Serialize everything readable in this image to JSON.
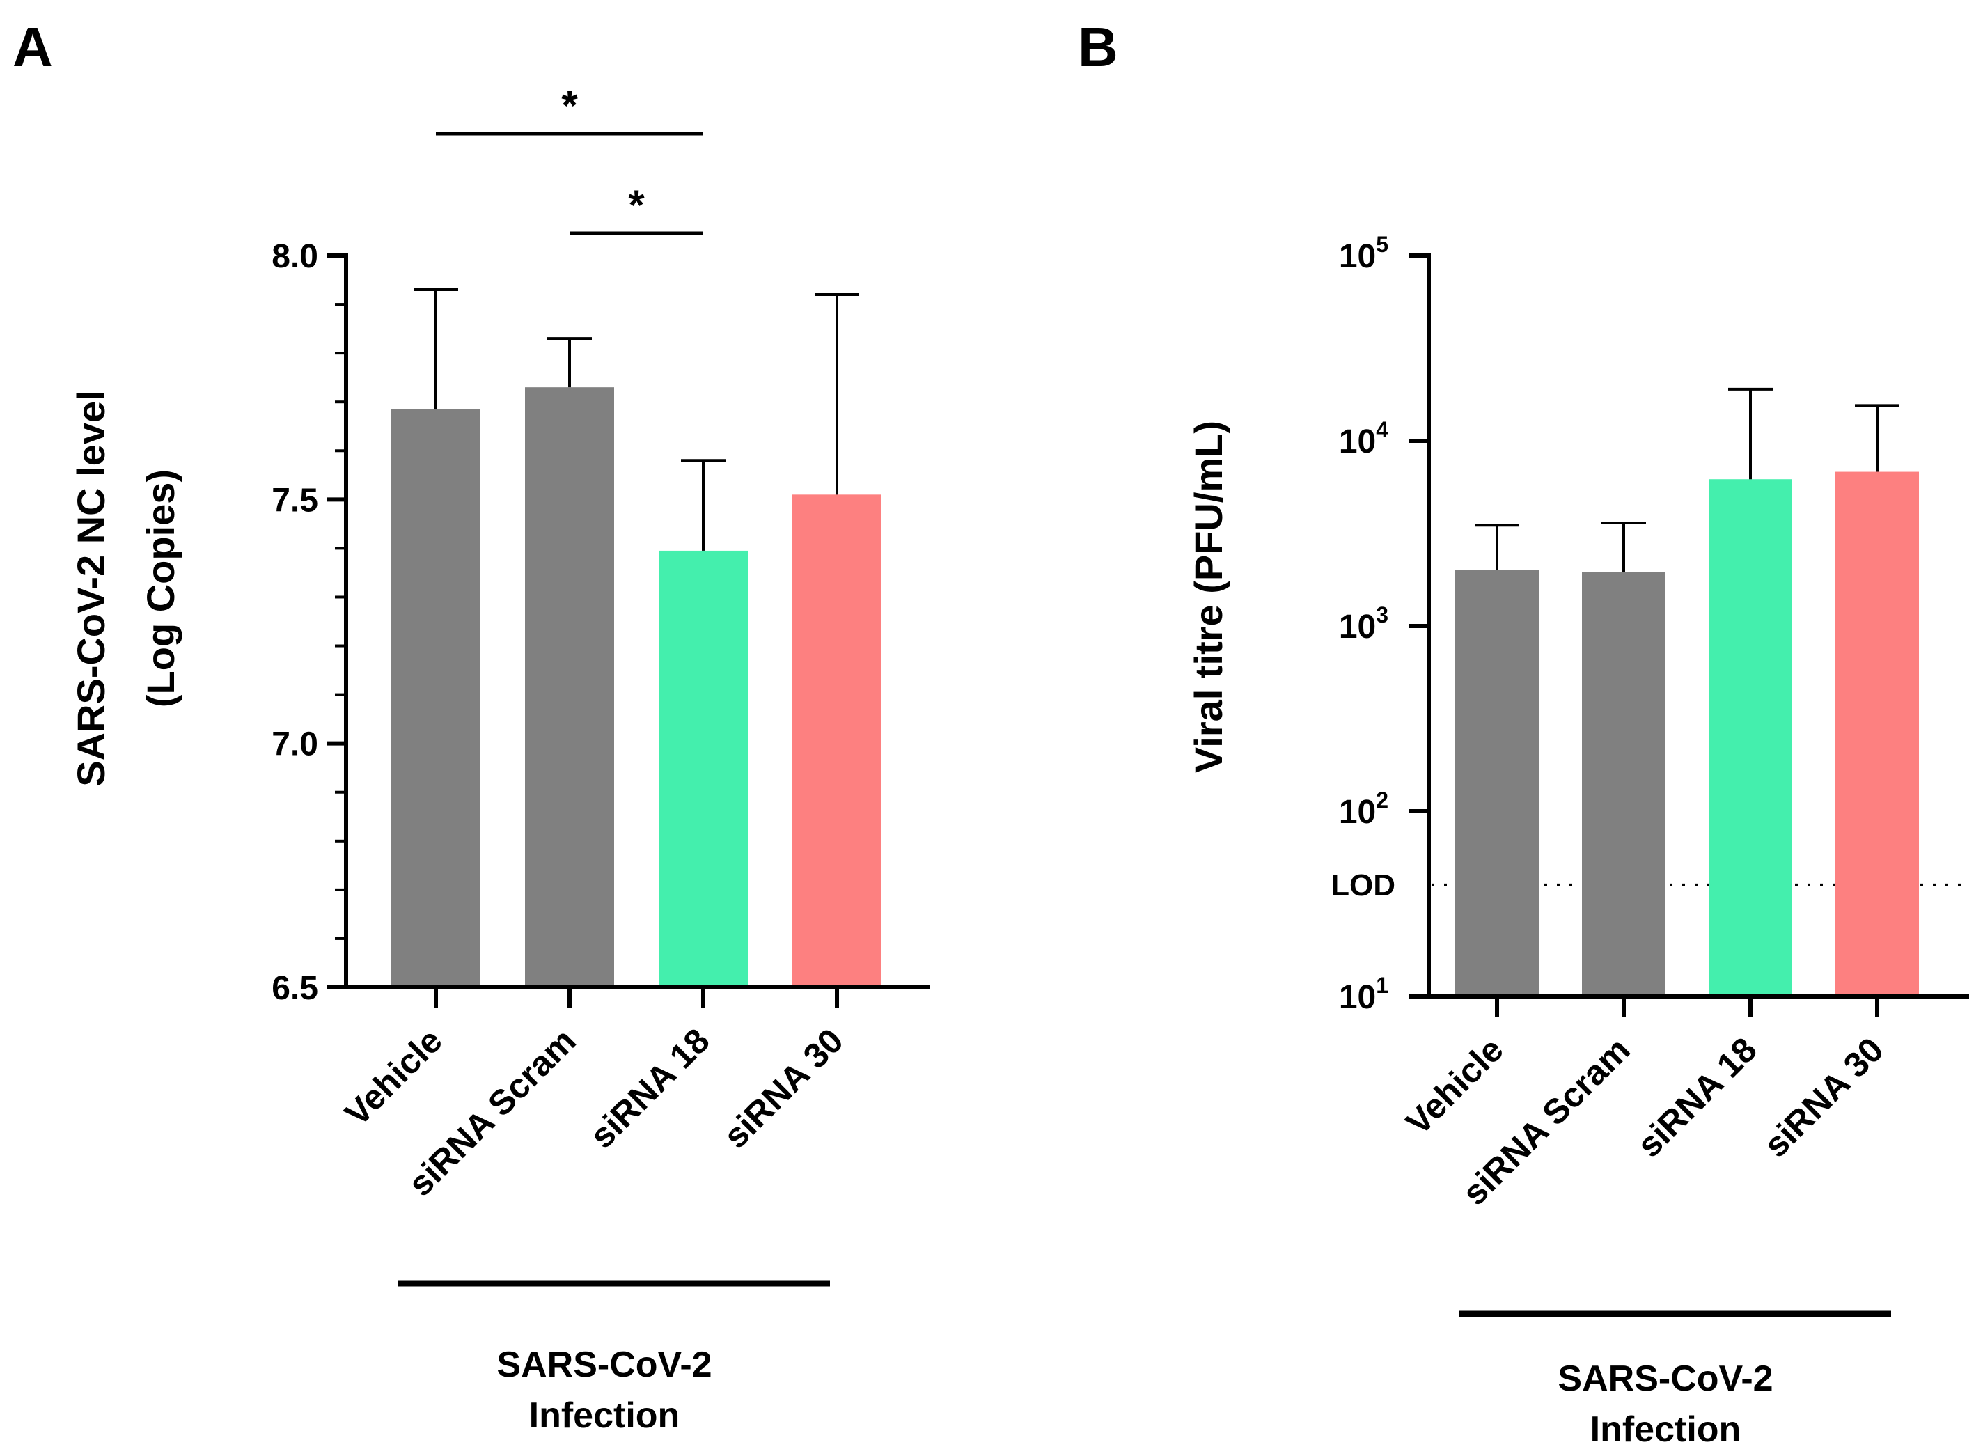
{
  "panels": {
    "a": {
      "letter": "A"
    },
    "b": {
      "letter": "B"
    }
  },
  "chart_data": [
    {
      "type": "bar",
      "categories": [
        "Vehicle",
        "siRNA Scram",
        "siRNA 18",
        "siRNA 30"
      ],
      "values": [
        7.685,
        7.73,
        7.395,
        7.51
      ],
      "errors_upper": [
        7.93,
        7.83,
        7.58,
        7.92
      ],
      "colors": [
        "#808080",
        "#808080",
        "#44efad",
        "#fd8080"
      ],
      "title": "",
      "xlabel": "",
      "ylabel": "SARS-CoV-2 NC level (Log Copies)",
      "ylim": [
        6.5,
        8.0
      ],
      "yticks": [
        "8.0",
        "7.5",
        "7.0",
        "6.5"
      ],
      "yscale": "linear",
      "group_label": "SARS-CoV-2 Infection",
      "significance": [
        {
          "pair": [
            "Vehicle",
            "siRNA 18"
          ],
          "label": "*"
        },
        {
          "pair": [
            "siRNA Scram",
            "siRNA 18"
          ],
          "label": "*"
        }
      ]
    },
    {
      "type": "bar",
      "categories": [
        "Vehicle",
        "siRNA Scram",
        "siRNA 18",
        "siRNA 30"
      ],
      "values": [
        2000,
        1950,
        6200,
        6800
      ],
      "errors_upper": [
        3500,
        3600,
        19000,
        15500
      ],
      "colors": [
        "#808080",
        "#808080",
        "#44efad",
        "#fd8080"
      ],
      "title": "",
      "xlabel": "",
      "ylabel": "Viral titre (PFU/mL)",
      "ylim": [
        10,
        100000
      ],
      "yscale": "log",
      "yticks": [
        {
          "base": "10",
          "exp": "5"
        },
        {
          "base": "10",
          "exp": "4"
        },
        {
          "base": "10",
          "exp": "3"
        },
        {
          "base": "10",
          "exp": "2"
        },
        {
          "base": "10",
          "exp": "1"
        }
      ],
      "lod": {
        "label": "LOD",
        "value": 40
      },
      "group_label": "SARS-CoV-2 Infection"
    }
  ]
}
